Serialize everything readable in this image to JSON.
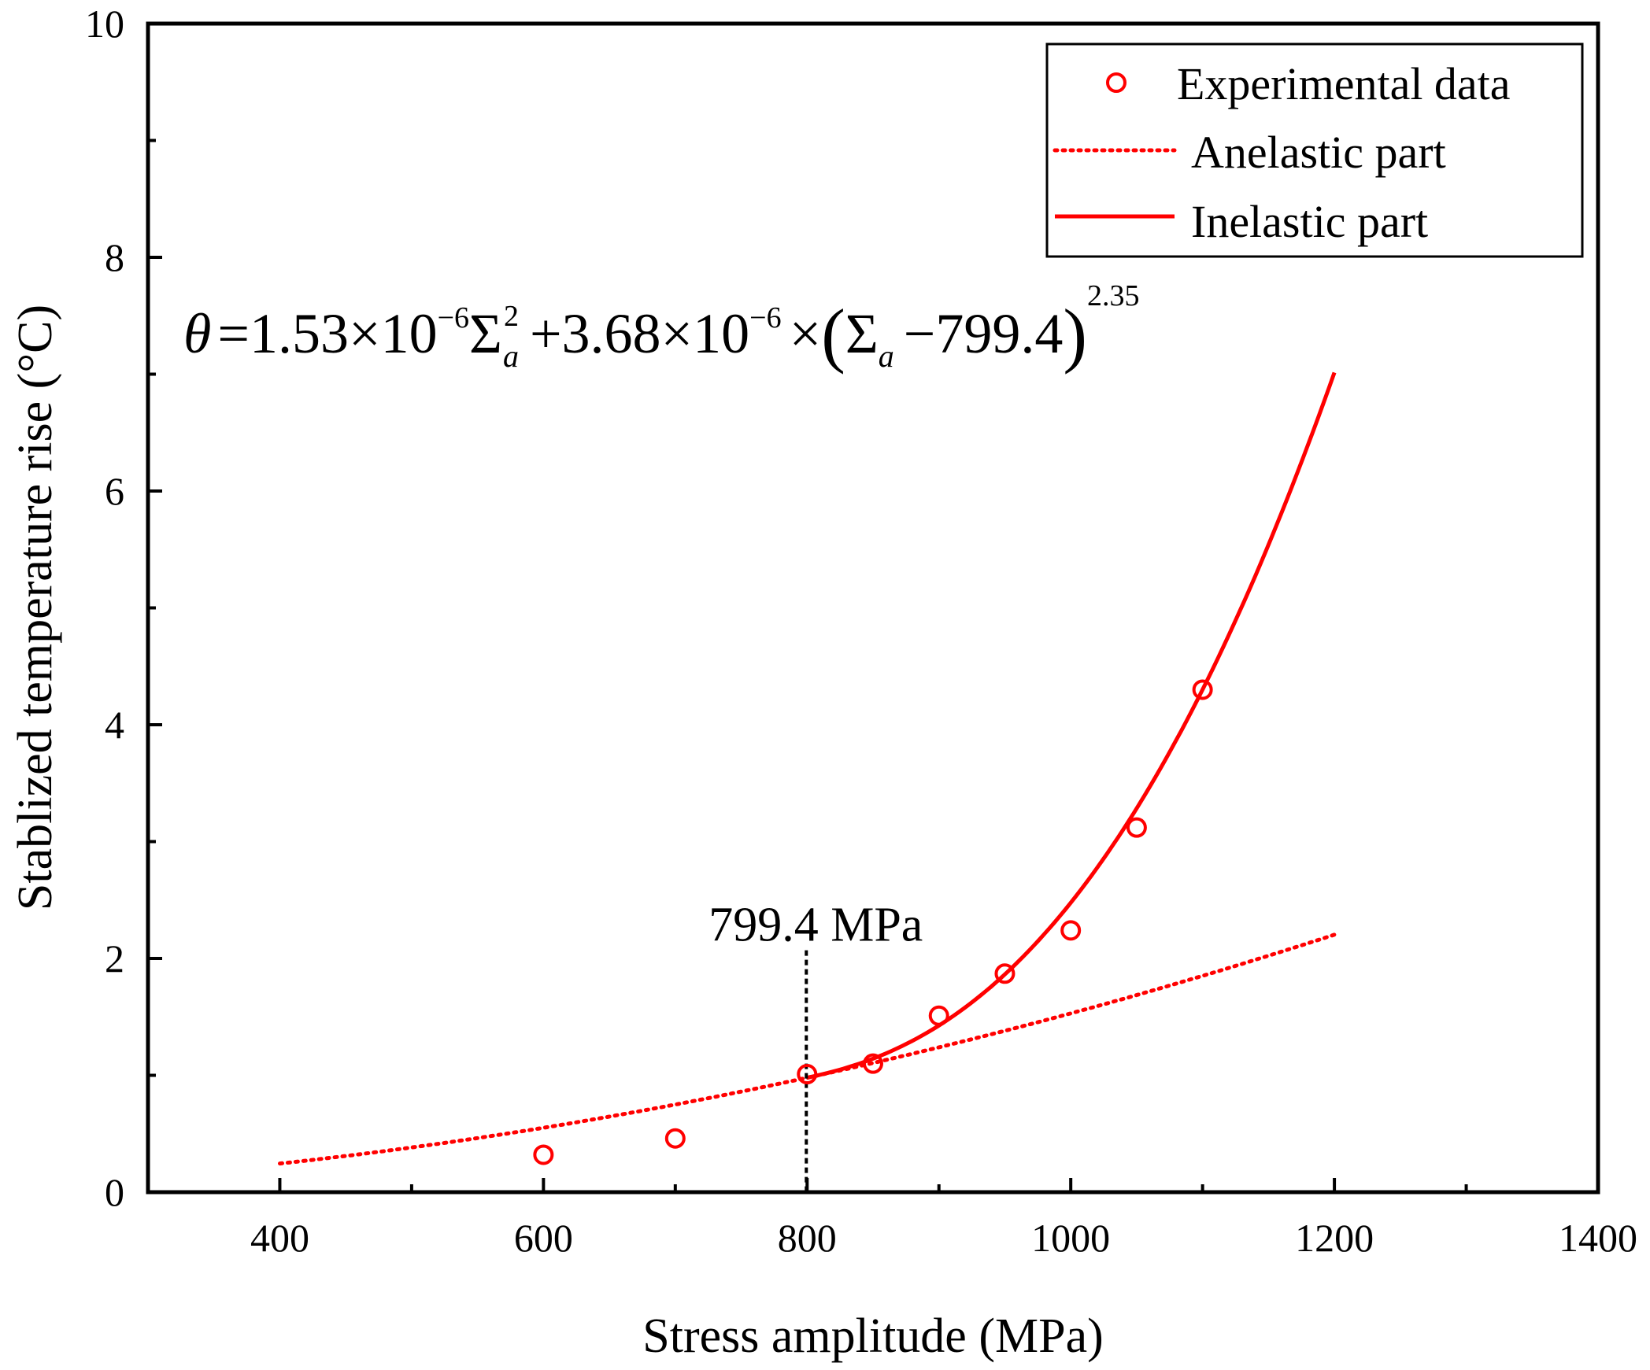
{
  "chart_data": {
    "type": "scatter",
    "xlabel": "Stress amplitude (MPa)",
    "ylabel": "Stablized temperature rise (°C)",
    "xlim": [
      300,
      1400
    ],
    "ylim": [
      0,
      10
    ],
    "x_ticks": [
      400,
      600,
      800,
      1000,
      1200,
      1400
    ],
    "x_minor_ticks": [
      500,
      700,
      900,
      1100,
      1300
    ],
    "y_ticks": [
      0,
      2,
      4,
      6,
      8,
      10
    ],
    "y_minor_ticks": [
      1,
      3,
      5,
      7,
      9
    ],
    "grid": false,
    "legend_position": "top-right",
    "colors": {
      "series": "#ff0000",
      "axis": "#000000",
      "annotation_line": "#000000"
    },
    "series": [
      {
        "name": "Experimental data",
        "style": "open-circle",
        "x": [
          600,
          700,
          800,
          850,
          900,
          950,
          1000,
          1050,
          1100
        ],
        "y": [
          0.32,
          0.46,
          1.01,
          1.1,
          1.51,
          1.87,
          2.24,
          3.12,
          4.3
        ]
      },
      {
        "name": "Anelastic part",
        "style": "dotted-line",
        "x_range": [
          400,
          1200
        ],
        "coef": 1.53e-06,
        "power": 2
      },
      {
        "name": "Inelastic part",
        "style": "solid-line",
        "x_range": [
          799.4,
          1200
        ],
        "coef_anelastic": 1.53e-06,
        "coef_inelastic": 3.68e-06,
        "threshold": 799.4,
        "power": 2.35
      }
    ],
    "annotations": {
      "threshold_label": "799.4 MPa",
      "threshold_x": 799.4,
      "equation": {
        "theta": "θ",
        "eq": "=",
        "c1": "1.53×10",
        "e1": "−6",
        "sigma": "Σ",
        "sub_a": "a",
        "sq": "2",
        "plus": "+",
        "c2": "3.68×10",
        "e2": "−6",
        "times": "×",
        "lparen": "(",
        "minus": "−",
        "thr": "799.4",
        "rparen": ")",
        "pow": "2.35"
      }
    }
  }
}
